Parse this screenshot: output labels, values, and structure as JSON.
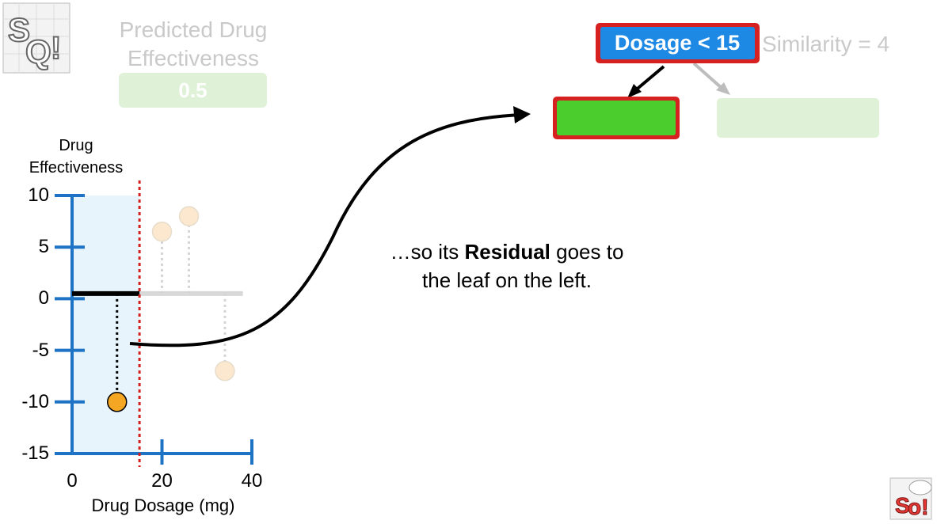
{
  "prediction": {
    "title_line1": "Predicted Drug",
    "title_line2": "Effectiveness",
    "value": "0.5"
  },
  "tree": {
    "root_label": "Dosage < 15",
    "similarity": "Similarity = 4"
  },
  "caption": {
    "pre": "…so its ",
    "bold": "Residual",
    "post": " goes to",
    "line2": "the leaf on the left."
  },
  "colors": {
    "axis": "#1f73c4",
    "root_fill": "#1e88e5",
    "leaf_left": "#4ccd2e",
    "leaf_right": "#dff2d8",
    "highlight_border": "#d72020",
    "region": "#e8f4fc",
    "highlighted_point": "#f5a623",
    "faded_point": "#fbe8cf"
  },
  "icons": {
    "logo": "statquest-logo",
    "small_logo": "statquest-small-logo"
  },
  "chart_data": {
    "type": "scatter",
    "xlabel": "Drug Dosage (mg)",
    "ylabel_line1": "Drug",
    "ylabel_line2": "Effectiveness",
    "xlim": [
      0,
      40
    ],
    "ylim": [
      -15,
      10
    ],
    "x_ticks": [
      "0",
      "20",
      "40"
    ],
    "y_ticks": [
      "10",
      "5",
      "0",
      "-5",
      "-10",
      "-15"
    ],
    "threshold_x": 15,
    "mean_y": 0.5,
    "points": [
      {
        "x": 10,
        "y": -10,
        "highlighted": true
      },
      {
        "x": 20,
        "y": 6.5,
        "highlighted": false
      },
      {
        "x": 26,
        "y": 8,
        "highlighted": false
      },
      {
        "x": 34,
        "y": -7,
        "highlighted": false
      }
    ]
  }
}
